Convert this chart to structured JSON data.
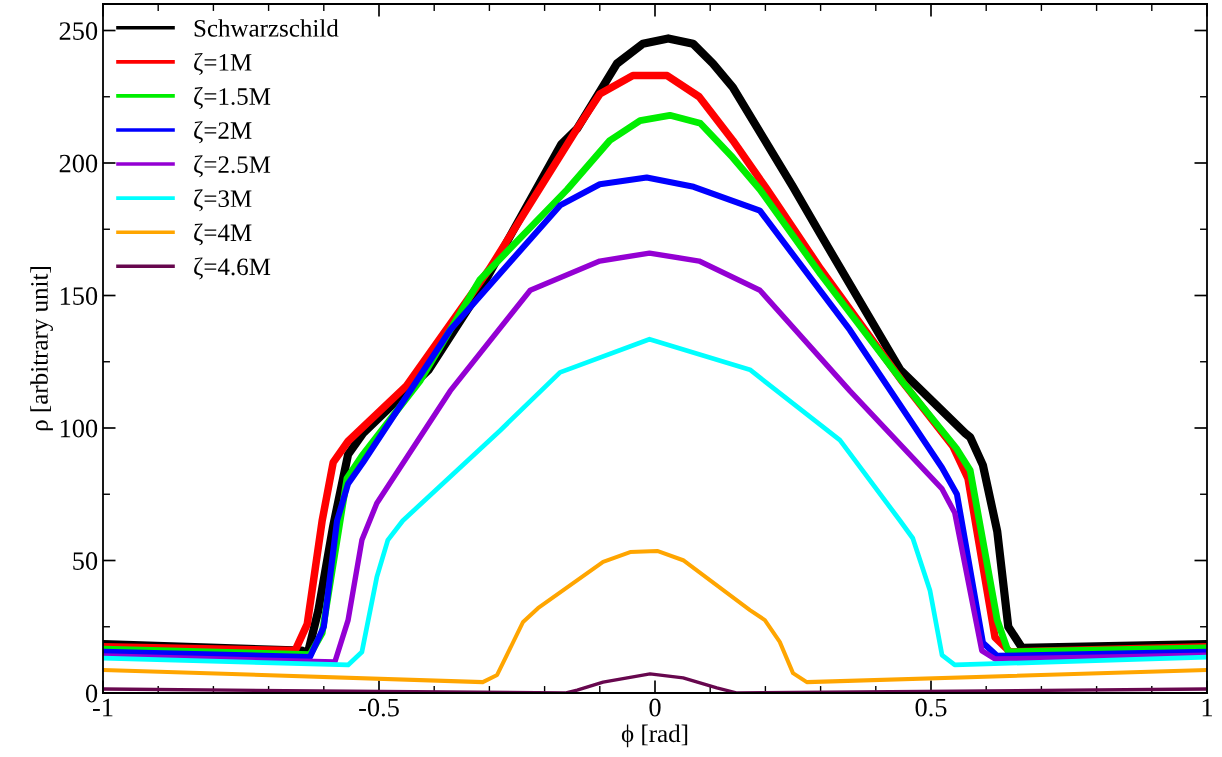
{
  "chart_data": {
    "type": "line",
    "xlabel": "ϕ [rad]",
    "ylabel": "ρ [arbitrary unit]",
    "xlim": [
      -1,
      1
    ],
    "ylim": [
      0,
      260
    ],
    "xticks": [
      {
        "value": -1,
        "label": "-1"
      },
      {
        "value": -0.9,
        "label": null
      },
      {
        "value": -0.8,
        "label": null
      },
      {
        "value": -0.7,
        "label": null
      },
      {
        "value": -0.6,
        "label": null
      },
      {
        "value": -0.5,
        "label": "-0.5"
      },
      {
        "value": -0.4,
        "label": null
      },
      {
        "value": -0.3,
        "label": null
      },
      {
        "value": -0.2,
        "label": null
      },
      {
        "value": -0.1,
        "label": null
      },
      0,
      {
        "value": 0.1,
        "label": null
      },
      {
        "value": 0.2,
        "label": null
      },
      {
        "value": 0.3,
        "label": null
      },
      {
        "value": 0.4,
        "label": null
      },
      0.5,
      {
        "value": 0.6,
        "label": null
      },
      {
        "value": 0.7,
        "label": null
      },
      {
        "value": 0.8,
        "label": null
      },
      {
        "value": 0.9,
        "label": null
      },
      1
    ],
    "yticks": [
      0,
      {
        "value": 25,
        "label": null
      },
      50,
      {
        "value": 75,
        "label": null
      },
      100,
      {
        "value": 125,
        "label": null
      },
      150,
      {
        "value": 175,
        "label": null
      },
      200,
      {
        "value": 225,
        "label": null
      },
      250
    ],
    "grid": false,
    "legend": "top left",
    "marker": "none",
    "line_style": "solid",
    "series": [
      {
        "name": "Schwarzschild",
        "color": "#000000",
        "x": [
          -1,
          -0.64,
          -0.629,
          -0.61,
          -0.583,
          -0.556,
          -0.529,
          -0.41,
          -0.317,
          -0.17,
          -0.141,
          -0.069,
          -0.022,
          0.024,
          0.069,
          0.105,
          0.141,
          0.25,
          0.3,
          0.444,
          0.562,
          0.571,
          0.594,
          0.62,
          0.64,
          0.665,
          1
        ],
        "values": [
          18.5,
          16,
          15,
          31,
          63,
          90,
          98,
          122,
          152,
          207,
          213,
          237.5,
          245,
          247,
          245,
          237.5,
          228.5,
          191,
          173,
          122,
          98,
          96.5,
          86,
          61,
          25,
          17,
          18.5
        ]
      },
      {
        "name": "ζ=1M",
        "color": "#ff0000",
        "x": [
          -1,
          -0.652,
          -0.63,
          -0.603,
          -0.583,
          -0.556,
          -0.45,
          -0.3,
          -0.141,
          -0.1,
          -0.04,
          0.022,
          0.08,
          0.141,
          0.203,
          0.3,
          0.45,
          0.54,
          0.567,
          0.616,
          0.643,
          1
        ],
        "values": [
          17.5,
          16,
          26,
          65,
          87,
          95,
          116,
          160,
          213,
          226,
          233,
          233,
          225,
          208.5,
          190,
          160,
          117,
          93,
          81,
          21,
          15.5,
          17.5
        ]
      },
      {
        "name": "ζ=1.5M",
        "color": "#00ee00",
        "x": [
          -1,
          -0.625,
          -0.603,
          -0.558,
          -0.529,
          -0.425,
          -0.317,
          -0.159,
          -0.082,
          -0.027,
          0.027,
          0.082,
          0.141,
          0.19,
          0.3,
          0.45,
          0.547,
          0.571,
          0.62,
          0.64,
          1
        ],
        "values": [
          16.5,
          14.5,
          22.6,
          81,
          90,
          118,
          156,
          190,
          208.5,
          216,
          218,
          215,
          202,
          190,
          158,
          117,
          92,
          84,
          27.5,
          15.5,
          17
        ]
      },
      {
        "name": "ζ=2M",
        "color": "#0000ff",
        "x": [
          -1,
          -0.625,
          -0.6,
          -0.576,
          -0.556,
          -0.529,
          -0.371,
          -0.172,
          -0.1,
          -0.015,
          0.07,
          0.19,
          0.353,
          0.52,
          0.547,
          0.594,
          0.62,
          1
        ],
        "values": [
          15.5,
          13.6,
          25,
          65,
          79,
          87,
          137,
          184,
          192,
          194.5,
          191,
          182,
          137,
          85,
          75,
          19,
          14,
          15.5
        ]
      },
      {
        "name": "ζ=2.5M",
        "color": "#9400d3",
        "x": [
          -1,
          -0.58,
          -0.556,
          -0.531,
          -0.504,
          -0.371,
          -0.226,
          -0.1,
          -0.01,
          0.08,
          0.19,
          0.353,
          0.52,
          0.543,
          0.592,
          0.616,
          1
        ],
        "values": [
          14,
          11.7,
          27.5,
          57.7,
          71.6,
          114,
          152,
          163,
          166,
          163,
          152,
          114,
          77,
          68,
          16,
          12.8,
          14.3
        ]
      },
      {
        "name": "ζ=3M",
        "color": "#00ffff",
        "x": [
          -1,
          -0.556,
          -0.531,
          -0.504,
          -0.484,
          -0.457,
          -0.281,
          -0.172,
          -0.01,
          0.172,
          0.335,
          0.444,
          0.467,
          0.498,
          0.52,
          0.543,
          1
        ],
        "values": [
          13.2,
          10.6,
          15.5,
          43.7,
          57.7,
          65,
          99,
          121,
          133.5,
          122,
          95.4,
          65,
          58.4,
          38.8,
          14.3,
          10.6,
          13.5
        ]
      },
      {
        "name": "ζ=4M",
        "color": "#ffa500",
        "x": [
          -1,
          -0.312,
          -0.286,
          -0.239,
          -0.212,
          -0.094,
          -0.045,
          0.004,
          0.051,
          0.172,
          0.199,
          0.226,
          0.25,
          0.275,
          1
        ],
        "values": [
          8.7,
          4.1,
          6.8,
          26.8,
          32,
          49.5,
          53.2,
          53.6,
          50.1,
          31.3,
          27.5,
          19.3,
          7.5,
          4.1,
          8.7
        ]
      },
      {
        "name": "ζ=4.6M",
        "color": "#67074e",
        "x": [
          -1,
          -0.163,
          -0.141,
          -0.094,
          -0.009,
          0.051,
          0.112,
          0.149,
          1
        ],
        "values": [
          1.5,
          0,
          1.1,
          4.1,
          7.2,
          5.7,
          1.9,
          0,
          1.5
        ]
      }
    ]
  }
}
